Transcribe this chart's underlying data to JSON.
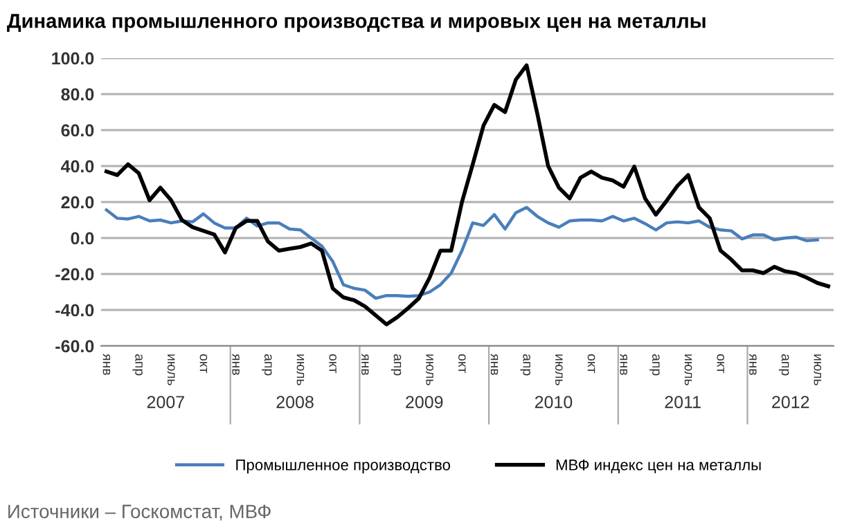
{
  "chart_data": {
    "type": "line",
    "title": "Динамика промышленного производства и мировых цен на металлы",
    "categories": [
      "янв",
      null,
      null,
      "апр",
      null,
      null,
      "июль",
      null,
      null,
      "окт",
      null,
      null,
      "янв",
      null,
      null,
      "апр",
      null,
      null,
      "июль",
      null,
      null,
      "окт",
      null,
      null,
      "янв",
      null,
      null,
      "апр",
      null,
      null,
      "июль",
      null,
      null,
      "окт",
      null,
      null,
      "янв",
      null,
      null,
      "апр",
      null,
      null,
      "июль",
      null,
      null,
      "окт",
      null,
      null,
      "янв",
      null,
      null,
      "апр",
      null,
      null,
      "июль",
      null,
      null,
      "окт",
      null,
      null,
      "янв",
      null,
      null,
      "апр",
      null,
      null,
      "июль",
      null
    ],
    "series": [
      {
        "name": "Промышленное производство",
        "color": "#4a7ebb",
        "values": [
          15.6,
          11,
          10.6,
          12,
          9.5,
          10,
          8.4,
          9.5,
          9,
          13.4,
          8.4,
          5.6,
          5.6,
          11,
          6.7,
          8.4,
          8.4,
          5,
          4.5,
          0,
          -4.5,
          -13,
          -26,
          -28,
          -29,
          -33.5,
          -32,
          -32,
          -32.4,
          -32,
          -30,
          -26,
          -19.5,
          -7,
          8.4,
          7,
          13,
          5,
          14,
          17,
          12,
          8.4,
          6,
          9.5,
          10,
          10,
          9.5,
          12,
          9.5,
          11,
          8,
          4.5,
          8.4,
          9,
          8.4,
          9.5,
          6,
          4.5,
          4,
          -0.5,
          1.7,
          1.7,
          -1,
          0,
          0.5,
          -1.5,
          -1,
          null
        ]
      },
      {
        "name": "МВФ индекс цен на металлы",
        "color": "#000000",
        "values": [
          37,
          35,
          41,
          36,
          21,
          28,
          21,
          10,
          6,
          4,
          2,
          -8,
          5.6,
          9.5,
          9.5,
          -2,
          -7,
          -6,
          -5,
          -3,
          -7,
          -28,
          -33,
          -34.6,
          -38,
          -43,
          -48,
          -44,
          -39,
          -33.5,
          -22,
          -7,
          -7,
          20,
          41,
          62.5,
          74,
          70,
          88,
          96,
          69,
          40,
          28,
          22,
          33.5,
          37,
          33.5,
          32,
          28.5,
          39.7,
          22,
          13,
          20.7,
          29,
          35,
          17,
          11,
          -7,
          -12,
          -18,
          -18,
          -19.5,
          -16,
          -18.5,
          -19.5,
          -22,
          -25,
          -26.8
        ]
      }
    ],
    "ylim": [
      -60,
      100
    ],
    "yticks": [
      {
        "value": -60,
        "label": "-60.0"
      },
      {
        "value": -40,
        "label": "-40.0"
      },
      {
        "value": -20,
        "label": "-20.0"
      },
      {
        "value": 0,
        "label": "0.0"
      },
      {
        "value": 20,
        "label": "20.0"
      },
      {
        "value": 40,
        "label": "40.0"
      },
      {
        "value": 60,
        "label": "60.0"
      },
      {
        "value": 80,
        "label": "80.0"
      },
      {
        "value": 100,
        "label": "100.0"
      }
    ],
    "grid": "y",
    "legend": "bottom",
    "marker": "none",
    "line_style": "solid",
    "annotations": [
      "Источники – Госкомстат, МВФ",
      "2007",
      "2008",
      "2009",
      "2010",
      "2011",
      "2012"
    ]
  }
}
